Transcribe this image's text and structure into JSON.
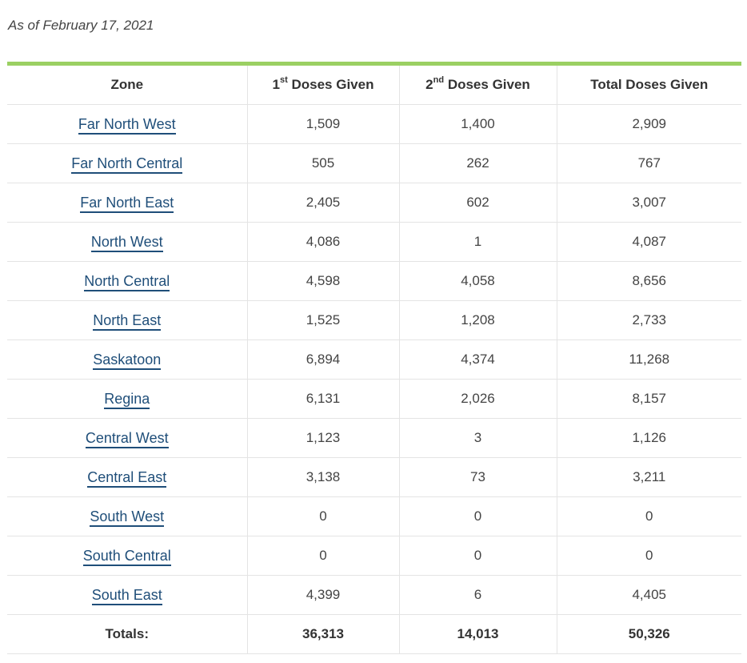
{
  "as_of": "As of February 17, 2021",
  "headers": {
    "zone": "Zone",
    "first_num": "1",
    "first_sup": "st",
    "first_rest": " Doses Given",
    "second_num": "2",
    "second_sup": "nd",
    "second_rest": " Doses Given",
    "total": "Total Doses Given"
  },
  "rows": [
    {
      "zone": "Far North West",
      "first": "1,509",
      "second": "1,400",
      "total": "2,909"
    },
    {
      "zone": "Far North Central",
      "first": "505",
      "second": "262",
      "total": "767"
    },
    {
      "zone": "Far North East",
      "first": "2,405",
      "second": "602",
      "total": "3,007"
    },
    {
      "zone": "North West",
      "first": "4,086",
      "second": "1",
      "total": "4,087"
    },
    {
      "zone": "North Central",
      "first": "4,598",
      "second": "4,058",
      "total": "8,656"
    },
    {
      "zone": "North East",
      "first": "1,525",
      "second": "1,208",
      "total": "2,733"
    },
    {
      "zone": "Saskatoon",
      "first": "6,894",
      "second": "4,374",
      "total": "11,268"
    },
    {
      "zone": "Regina",
      "first": "6,131",
      "second": "2,026",
      "total": "8,157"
    },
    {
      "zone": "Central West",
      "first": "1,123",
      "second": "3",
      "total": "1,126"
    },
    {
      "zone": "Central East",
      "first": "3,138",
      "second": "73",
      "total": "3,211"
    },
    {
      "zone": "South West",
      "first": "0",
      "second": "0",
      "total": "0"
    },
    {
      "zone": "South Central",
      "first": "0",
      "second": "0",
      "total": "0"
    },
    {
      "zone": "South East",
      "first": "4,399",
      "second": "6",
      "total": "4,405"
    }
  ],
  "totals": {
    "label": "Totals:",
    "first": "36,313",
    "second": "14,013",
    "total": "50,326"
  },
  "colors": {
    "accent_bar": "#9bd063",
    "link": "#1f4e79"
  }
}
